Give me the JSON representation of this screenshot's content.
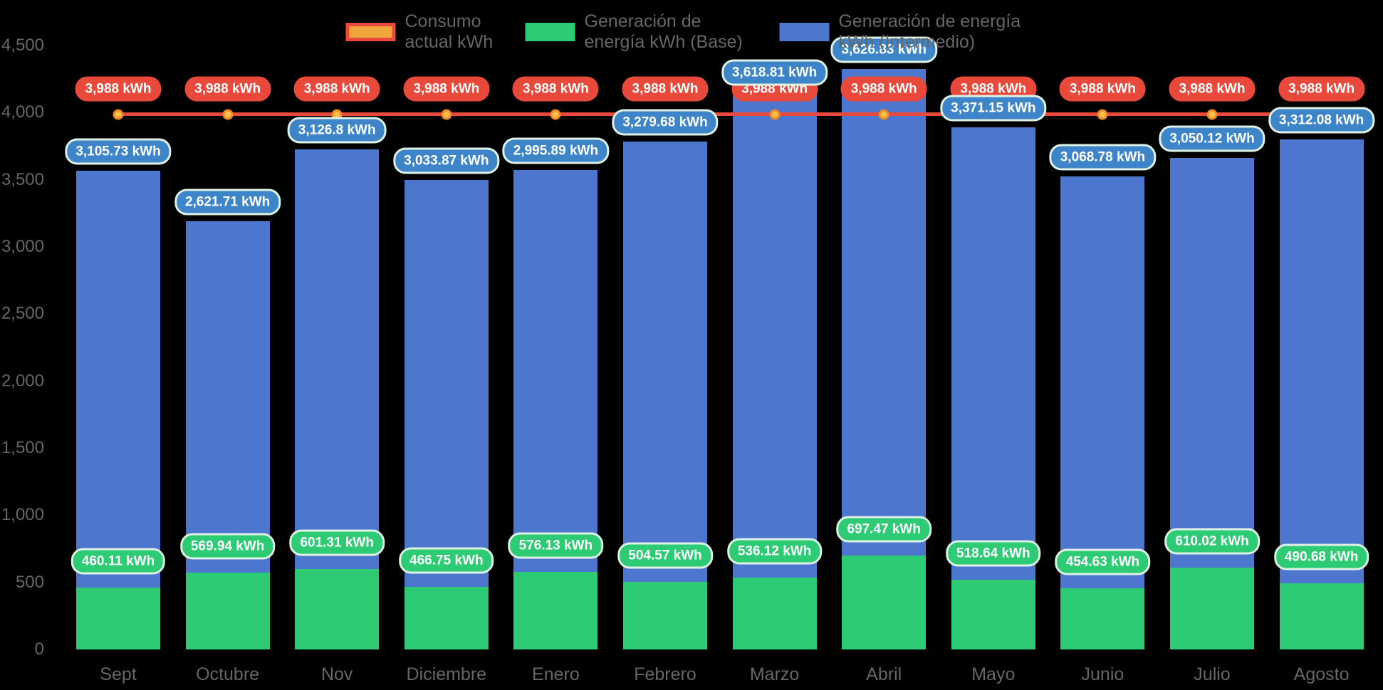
{
  "legend": {
    "items": [
      {
        "id": "consumption",
        "label": "Consumo actual kWh"
      },
      {
        "id": "base",
        "label": "Generación de energía kWh (Base)"
      },
      {
        "id": "intermedio",
        "label": "Generación de energía kWh (Intermedio)"
      }
    ]
  },
  "colors": {
    "background": "#000000",
    "bar_base": "#2dcb73",
    "bar_intermedio": "#4d77cf",
    "line": "#e8493a",
    "point_fill": "#fcbf49",
    "point_border": "#f08a24",
    "pill_base": "#2dcb73",
    "pill_intermedio": "#3d85c8",
    "pill_consumption": "#e8493a",
    "pill_border": "#dff1e4",
    "axis_text": "#666666",
    "legend_consumption_fill": "#f0a63b"
  },
  "chart_data": {
    "type": "bar",
    "stacked": true,
    "grid": false,
    "legend_position": "top",
    "ylim": [
      0,
      4500
    ],
    "yticks": [
      {
        "value": 4500,
        "label": "4,500"
      },
      {
        "value": 4000,
        "label": "4,000"
      },
      {
        "value": 3500,
        "label": "3,500"
      },
      {
        "value": 3000,
        "label": "3,000"
      },
      {
        "value": 2500,
        "label": "2,500"
      },
      {
        "value": 2000,
        "label": "2,000"
      },
      {
        "value": 1500,
        "label": "1,500"
      },
      {
        "value": 1000,
        "label": "1,000"
      },
      {
        "value": 500,
        "label": "500"
      },
      {
        "value": 0,
        "label": "0"
      }
    ],
    "categories": [
      "Sept",
      "Octubre",
      "Nov",
      "Diciembre",
      "Enero",
      "Febrero",
      "Marzo",
      "Abril",
      "Mayo",
      "Junio",
      "Julio",
      "Agosto"
    ],
    "series": [
      {
        "name": "Consumo actual kWh",
        "type": "line",
        "color": "#e8493a",
        "values": [
          3988,
          3988,
          3988,
          3988,
          3988,
          3988,
          3988,
          3988,
          3988,
          3988,
          3988,
          3988
        ],
        "labels": [
          "3,988 kWh",
          "3,988 kWh",
          "3,988 kWh",
          "3,988 kWh",
          "3,988 kWh",
          "3,988 kWh",
          "3,988 kWh",
          "3,988 kWh",
          "3,988 kWh",
          "3,988 kWh",
          "3,988 kWh",
          "3,988 kWh"
        ]
      },
      {
        "name": "Generación de energía kWh (Base)",
        "type": "bar",
        "color": "#2dcb73",
        "values": [
          460.11,
          569.94,
          601.31,
          466.75,
          576.13,
          504.57,
          536.12,
          697.47,
          518.64,
          454.63,
          610.02,
          490.68
        ],
        "labels": [
          "460.11 kWh",
          "569.94 kWh",
          "601.31 kWh",
          "466.75 kWh",
          "576.13 kWh",
          "504.57 kWh",
          "536.12 kWh",
          "697.47 kWh",
          "518.64 kWh",
          "454.63 kWh",
          "610.02 kWh",
          "490.68 kWh"
        ]
      },
      {
        "name": "Generación de energía kWh (Intermedio)",
        "type": "bar",
        "color": "#4d77cf",
        "values": [
          3105.73,
          2621.71,
          3126.8,
          3033.87,
          2995.89,
          3279.68,
          3618.81,
          3626.83,
          3371.15,
          3068.78,
          3050.12,
          3312.08
        ],
        "labels": [
          "3,105.73 kWh",
          "2,621.71 kWh",
          "3,126.8 kWh",
          "3,033.87 kWh",
          "2,995.89 kWh",
          "3,279.68 kWh",
          "3,618.81 kWh",
          "3,626.83 kWh",
          "3,371.15 kWh",
          "3,068.78 kWh",
          "3,050.12 kWh",
          "3,312.08 kWh"
        ]
      }
    ]
  }
}
